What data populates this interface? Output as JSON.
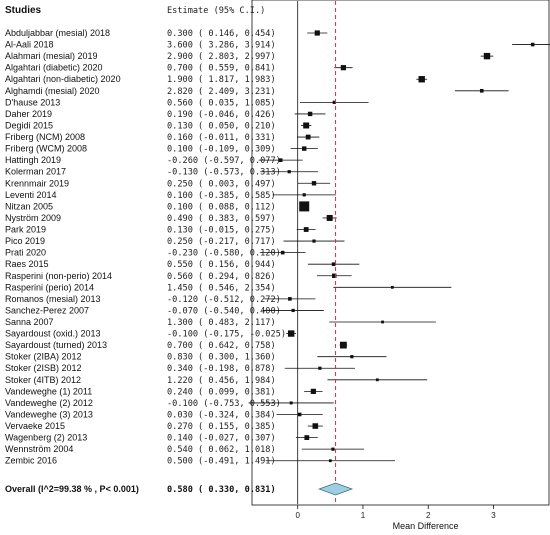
{
  "chart_data": {
    "type": "forest",
    "headers": {
      "studies": "Studies",
      "estimate": "Estimate (95% C.I.)"
    },
    "studies": [
      {
        "name": "Abduljabbar (mesial) 2018",
        "est": 0.3,
        "lo": 0.146,
        "hi": 0.454,
        "w": 0.4
      },
      {
        "name": "Al-Aali 2018",
        "est": 3.6,
        "lo": 3.286,
        "hi": 3.914,
        "w": 0.2
      },
      {
        "name": "Alahmari (mesial) 2019",
        "est": 2.9,
        "lo": 2.803,
        "hi": 2.997,
        "w": 0.55
      },
      {
        "name": "Algahtari (diabetic) 2020",
        "est": 0.7,
        "lo": 0.559,
        "hi": 0.841,
        "w": 0.4
      },
      {
        "name": "Algahtari (non-diabetic) 2020",
        "est": 1.9,
        "lo": 1.817,
        "hi": 1.983,
        "w": 0.55
      },
      {
        "name": "Alghamdi (mesial) 2020",
        "est": 2.82,
        "est_label": "2.820",
        "lo": 2.409,
        "hi": 3.231,
        "w": 0.2
      },
      {
        "name": "D'hause 2013",
        "est": 0.56,
        "lo": 0.035,
        "hi": 1.085,
        "w": 0.15
      },
      {
        "name": "Daher 2019",
        "est": 0.19,
        "lo": -0.046,
        "hi": 0.426,
        "w": 0.3
      },
      {
        "name": "Degidi 2015",
        "est": 0.13,
        "lo": 0.05,
        "hi": 0.21,
        "w": 0.5
      },
      {
        "name": "Friberg (NCM) 2008",
        "est": 0.16,
        "lo": -0.011,
        "hi": 0.331,
        "w": 0.35
      },
      {
        "name": "Friberg (WCM) 2008",
        "est": 0.1,
        "lo": -0.109,
        "hi": 0.309,
        "w": 0.3
      },
      {
        "name": "Hattingh 2019",
        "est": -0.26,
        "lo": -0.597,
        "hi": 0.077,
        "w": 0.2
      },
      {
        "name": "Kolerman 2017",
        "est": -0.13,
        "lo": -0.573,
        "hi": 0.313,
        "w": 0.15
      },
      {
        "name": "Krennmair 2019",
        "est": 0.25,
        "lo": 0.003,
        "hi": 0.497,
        "w": 0.3
      },
      {
        "name": "Leventi 2014",
        "est": 0.1,
        "lo": -0.385,
        "hi": 0.585,
        "w": 0.15
      },
      {
        "name": "Nitzan 2005",
        "est": 0.1,
        "lo": 0.088,
        "hi": 0.112,
        "w": 1.0
      },
      {
        "name": "Nyström 2009",
        "est": 0.49,
        "lo": 0.383,
        "hi": 0.597,
        "w": 0.5
      },
      {
        "name": "Park 2019",
        "est": 0.13,
        "lo": -0.015,
        "hi": 0.275,
        "w": 0.35
      },
      {
        "name": "Pico 2019",
        "est": 0.25,
        "lo": -0.217,
        "hi": 0.717,
        "w": 0.15
      },
      {
        "name": "Prati 2020",
        "est": -0.23,
        "lo": -0.58,
        "hi": 0.12,
        "w": 0.2
      },
      {
        "name": "Raes 2015",
        "est": 0.55,
        "lo": 0.156,
        "hi": 0.944,
        "w": 0.2
      },
      {
        "name": "Rasperini (non-perio) 2014",
        "est": 0.56,
        "lo": 0.294,
        "hi": 0.826,
        "w": 0.3
      },
      {
        "name": "Rasperini (perio) 2014",
        "est": 1.45,
        "lo": 0.546,
        "hi": 2.354,
        "w": 0.1
      },
      {
        "name": "Romanos (mesial) 2013",
        "est": -0.12,
        "lo": -0.512,
        "hi": 0.272,
        "w": 0.2
      },
      {
        "name": "Sanchez-Perez 2007",
        "est": -0.07,
        "lo": -0.54,
        "hi": 0.4,
        "w": 0.15
      },
      {
        "name": "Sanna 2007",
        "est": 1.3,
        "lo": 0.483,
        "hi": 2.117,
        "w": 0.1
      },
      {
        "name": "Sayardoust (oxid.) 2013",
        "est": -0.1,
        "lo": -0.175,
        "hi": -0.025,
        "w": 0.55
      },
      {
        "name": "Sayardoust (turned) 2013",
        "est": 0.7,
        "lo": 0.642,
        "hi": 0.758,
        "w": 0.6
      },
      {
        "name": "Stoker (2IBA) 2012",
        "est": 0.83,
        "lo": 0.3,
        "hi": 1.36,
        "w": 0.15
      },
      {
        "name": "Stoker (2ISB) 2012",
        "est": 0.34,
        "lo": -0.198,
        "hi": 0.878,
        "w": 0.15
      },
      {
        "name": "Stoker (4ITB) 2012",
        "est": 1.22,
        "lo": 0.456,
        "hi": 1.984,
        "w": 0.1
      },
      {
        "name": "Vandeweghe (1) 2011",
        "est": 0.24,
        "lo": 0.099,
        "hi": 0.381,
        "w": 0.4
      },
      {
        "name": "Vandeweghe (2) 2012",
        "est": -0.1,
        "lo": -0.753,
        "hi": 0.553,
        "w": 0.12
      },
      {
        "name": "Vandeweghe (3) 2013",
        "est": 0.03,
        "lo": -0.324,
        "hi": 0.384,
        "w": 0.2
      },
      {
        "name": "Vervaeke 2015",
        "est": 0.27,
        "lo": 0.155,
        "hi": 0.385,
        "w": 0.45
      },
      {
        "name": "Wagenberg (2) 2013",
        "est": 0.14,
        "lo": -0.027,
        "hi": 0.307,
        "w": 0.35
      },
      {
        "name": "Wennström 2004",
        "est": 0.54,
        "lo": 0.062,
        "hi": 1.018,
        "w": 0.15
      },
      {
        "name": "Zembic 2016",
        "est": 0.5,
        "lo": -0.491,
        "hi": 1.491,
        "w": 0.1
      }
    ],
    "overall": {
      "label": "Overall (I^2=99.38 % , P< 0.001)",
      "est": 0.58,
      "lo": 0.33,
      "hi": 0.831
    },
    "x_axis": {
      "label": "Mean Difference",
      "range": [
        -0.7,
        3.85
      ],
      "ticks": [
        0,
        1,
        2,
        3
      ]
    },
    "reference_line": {
      "x": 0.58,
      "color": "#e03030"
    },
    "colors": {
      "marker": "#111111",
      "diamond_fill": "#9ecfe0",
      "diamond_stroke": "#3c6e80",
      "reference": "#e03030"
    }
  }
}
